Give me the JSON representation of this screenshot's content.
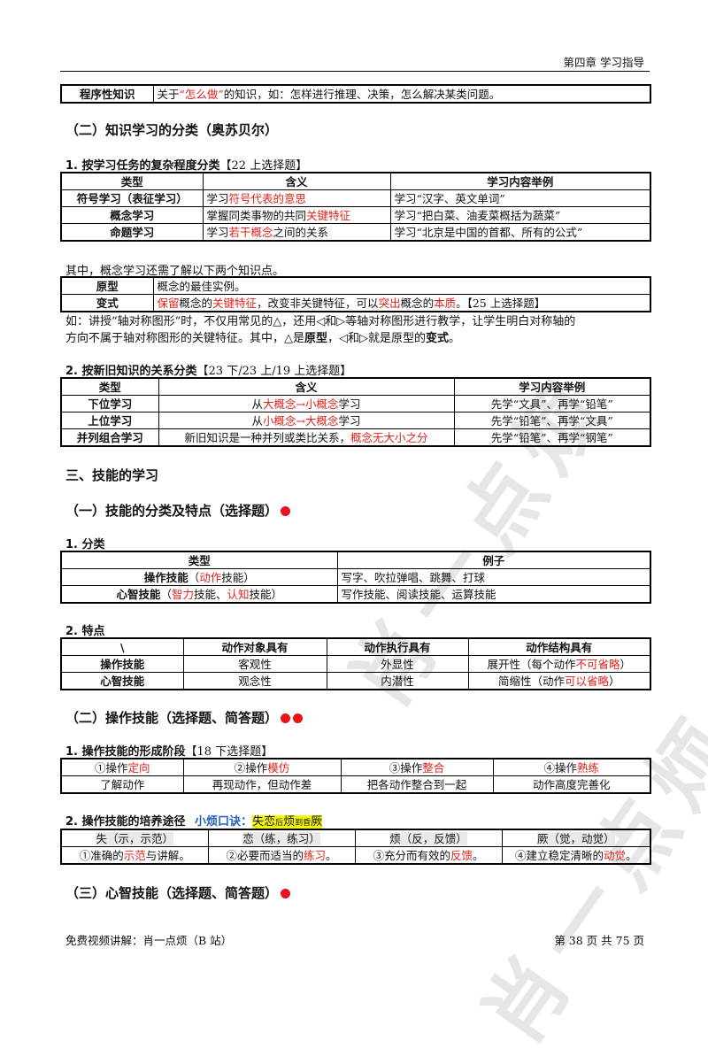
{
  "header": {
    "chapter": "第四章  学习指导"
  },
  "top_row": {
    "label": "程序性知识",
    "text_pre": "关于",
    "text_red": "“怎么做”",
    "text_post": "的知识，如：怎样进行推理、决策，怎么解决某类问题。"
  },
  "sec_2": {
    "title": "（二）知识学习的分类（奥苏贝尔）",
    "sub1": {
      "title": "1. 按学习任务的复杂程度分类",
      "tag": "【22 上选择题】",
      "headers": [
        "类型",
        "含义",
        "学习内容举例"
      ],
      "rows": [
        {
          "type": "符号学习（表征学习）",
          "m_pre": "学习",
          "m_red": "符号代表的意思",
          "m_post": "",
          "example": "学习“汉字、英文单词”"
        },
        {
          "type": "概念学习",
          "m_pre": "掌握同类事物的共同",
          "m_red": "关键特征",
          "m_post": "",
          "example": "学习“把白菜、油麦菜概括为蔬菜”"
        },
        {
          "type": "命题学习",
          "m_pre": "学习",
          "m_red": "若干概念",
          "m_post": "之间的关系",
          "example": "学习“北京是中国的首都、所有的公式”"
        }
      ]
    },
    "concept_note": "其中，概念学习还需了解以下两个知识点。",
    "concept_rows": {
      "proto_label": "原型",
      "proto_text": "概念的最佳实例。",
      "var_label": "变式",
      "var_red1": "保留",
      "var_t1": "概念的",
      "var_red2": "关键特征",
      "var_t2": "，改变非关键特征，可以",
      "var_red3": "突出",
      "var_t3": "概念的",
      "var_red4": "本质",
      "var_t4": "。【25 上选择题】"
    },
    "example_line1": "如：讲授“轴对称图形”时，不仅用常见的△，还用◁和▷等轴对称图形进行教学，让学生明白对称轴的",
    "example_line2_pre": "方向不属于轴对称图形的关键特征。其中，△是",
    "example_line2_b1": "原型",
    "example_line2_mid": "，◁和▷就是原型的",
    "example_line2_b2": "变式",
    "example_line2_end": "。",
    "sub2": {
      "title": "2. 按新旧知识的关系分类",
      "tag": "【23 下/23 上/19 上选择题】",
      "headers": [
        "类型",
        "含义",
        "学习内容举例"
      ],
      "rows": [
        {
          "type": "下位学习",
          "m_pre": "从",
          "m_red": "大概念→小概念",
          "m_post": "学习",
          "example": "先学“文具”、再学“铅笔”"
        },
        {
          "type": "上位学习",
          "m_pre": "从",
          "m_red": "小概念→大概念",
          "m_post": "学习",
          "example": "先学“铅笔”、再学“文具”"
        },
        {
          "type": "并列组合学习",
          "m_pre": "新旧知识是一种并列或类比关系，",
          "m_red": "概念无大小之分",
          "m_post": "",
          "example": "先学“铅笔”、再学“钢笔”"
        }
      ]
    }
  },
  "sec_3": {
    "title": "三、技能的学习",
    "part1": {
      "title": "（一）技能的分类及特点（选择题）",
      "sub1": {
        "title": "1. 分类",
        "headers": [
          "类型",
          "例子"
        ],
        "rows": [
          {
            "type_b": "操作技能",
            "p_open": "（",
            "p_red": "动作",
            "p_close": "技能）",
            "example": "写字、吹拉弹唱、跳舞、打球"
          },
          {
            "type_b": "心智技能",
            "p_open": "（",
            "p_red": "智力",
            "p_mid": "技能、",
            "p_red2": "认知",
            "p_close": "技能）",
            "example": "写作技能、阅读技能、运算技能"
          }
        ]
      },
      "sub2": {
        "title": "2. 特点",
        "headers": [
          "\\",
          "动作对象具有",
          "动作执行具有",
          "动作结构具有"
        ],
        "rows": [
          {
            "type": "操作技能",
            "a": "客观性",
            "b": "外显性",
            "c_pre": "展开性（每个动作",
            "c_red": "不可省略",
            "c_post": "）"
          },
          {
            "type": "心智技能",
            "a": "观念性",
            "b": "内潜性",
            "c_pre": "简缩性（动作",
            "c_red": "可以省略",
            "c_post": "）"
          }
        ]
      }
    },
    "part2": {
      "title": "（二）操作技能（选择题、简答题）",
      "sub1": {
        "title": "1. 操作技能的形成阶段",
        "tag": "【18 下选择题】",
        "stages": [
          {
            "pre": "①操作",
            "red": "定向",
            "desc": "了解动作"
          },
          {
            "pre": "②操作",
            "red": "模仿",
            "desc": "再现动作，但动作差"
          },
          {
            "pre": "③操作",
            "red": "整合",
            "desc": "把各动作整合到一起"
          },
          {
            "pre": "④操作",
            "red": "熟练",
            "desc": "动作高度完善化"
          }
        ]
      },
      "sub2": {
        "title": "2. 操作技能的培养途径",
        "mnemonic_label": "小烦口诀：",
        "mnemonic_a": "失恋",
        "mnemonic_b": "后",
        "mnemonic_c": "烦",
        "mnemonic_d": "到",
        "mnemonic_e": "昏",
        "mnemonic_f": "厥",
        "cols": [
          {
            "head": "失（示，示范）",
            "pre": "①准确的",
            "red": "示范",
            "post": "与讲解。"
          },
          {
            "head": "恋（练，练习）",
            "pre": "②必要而适当的",
            "red": "练习",
            "post": "。"
          },
          {
            "head": "烦（反，反馈）",
            "pre": "③充分而有效的",
            "red": "反馈",
            "post": "。"
          },
          {
            "head": "厥（觉，动觉）",
            "pre": "④建立稳定清晰的",
            "red": "动觉",
            "post": "。"
          }
        ]
      }
    },
    "part3": {
      "title": "（三）心智技能（选择题、简答题）"
    }
  },
  "footer": {
    "left": "免费视频讲解：肖一点烦（B 站）",
    "page": "第 38 页 共 75 页"
  },
  "watermark": {
    "text": "肖一点烦"
  }
}
